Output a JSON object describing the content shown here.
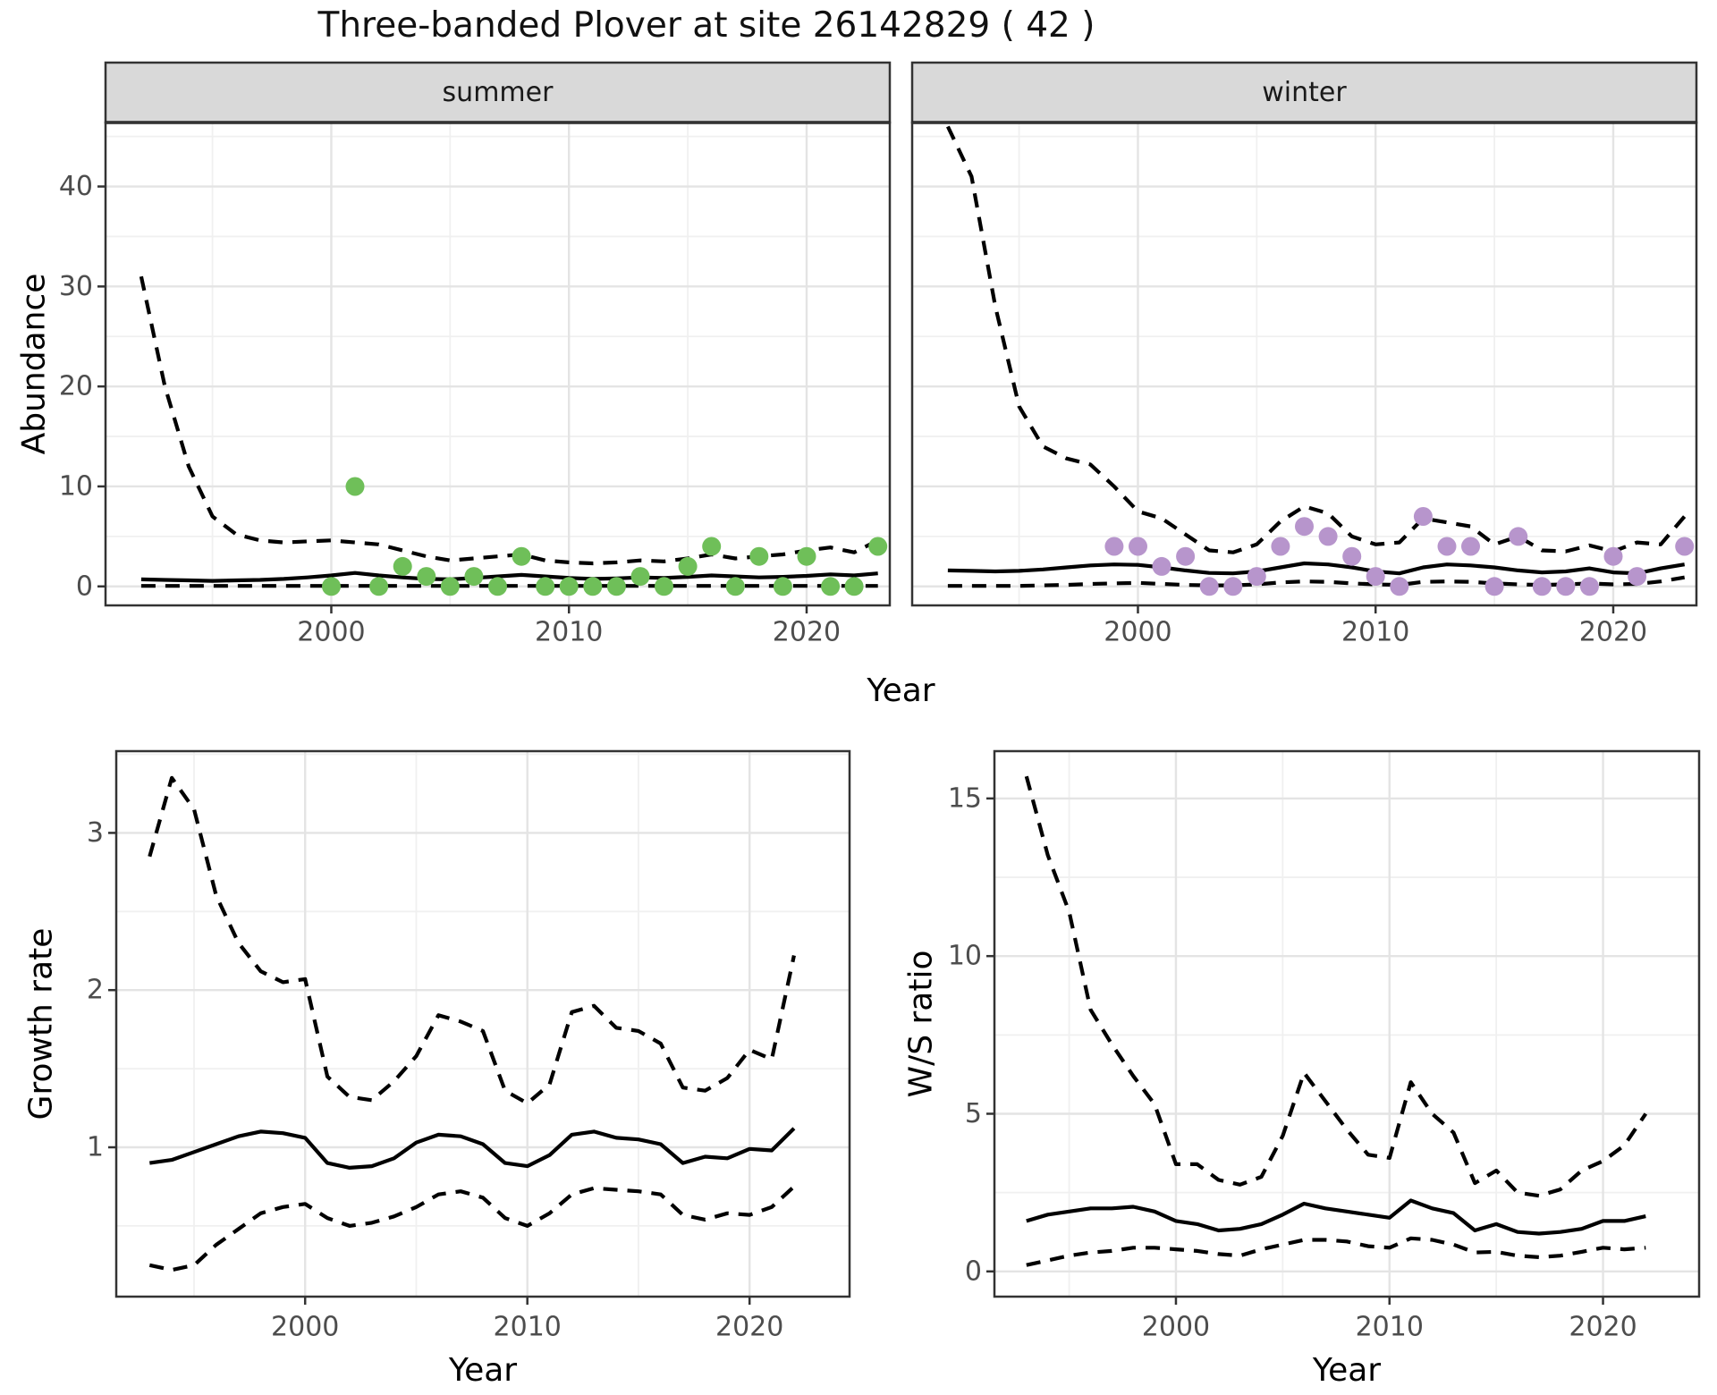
{
  "title": "Three-banded Plover at site 26142829 ( 42 )",
  "axis_labels": {
    "top_y": "Abundance",
    "top_x": "Year",
    "bottom_left_y": "Growth rate",
    "bottom_left_x": "Year",
    "bottom_right_y": "W/S ratio",
    "bottom_right_x": "Year"
  },
  "colors": {
    "summer_point": "#6FBF59",
    "winter_point": "#B795CC",
    "line": "#000000",
    "strip_bg": "#D9D9D9",
    "strip_border": "#333333",
    "panel_border": "#333333",
    "grid_major": "#E4E4E4",
    "grid_minor": "#F0F0F0",
    "tick_text": "#4D4D4D",
    "tick_mark": "#333333",
    "background": "#FFFFFF"
  },
  "chart_data": [
    {
      "id": "abundance-summer",
      "type": "line",
      "facet_label": "summer",
      "ylabel": "Abundance",
      "xlabel": "Year",
      "xlim": [
        1990.5,
        2023.5
      ],
      "ylim": [
        -1.9,
        46.4
      ],
      "xticks": [
        2000,
        2010,
        2020
      ],
      "xminor": [
        1995,
        2005,
        2015
      ],
      "yticks": [
        0,
        10,
        20,
        30,
        40
      ],
      "yminor": [
        5,
        15,
        25,
        35,
        45
      ],
      "series": [
        {
          "name": "upper-ci",
          "style": "dashed",
          "x": [
            1992,
            1993,
            1994,
            1995,
            1996,
            1997,
            1998,
            1999,
            2000,
            2001,
            2002,
            2003,
            2004,
            2005,
            2006,
            2007,
            2008,
            2009,
            2010,
            2011,
            2012,
            2013,
            2014,
            2015,
            2016,
            2017,
            2018,
            2019,
            2020,
            2021,
            2022,
            2023
          ],
          "y": [
            31,
            20,
            12,
            7,
            5.2,
            4.6,
            4.4,
            4.5,
            4.6,
            4.4,
            4.2,
            3.6,
            3.0,
            2.6,
            2.8,
            3.0,
            3.2,
            2.6,
            2.4,
            2.3,
            2.4,
            2.6,
            2.5,
            2.8,
            3.2,
            2.8,
            3.0,
            3.2,
            3.6,
            3.9,
            3.4,
            4.6
          ]
        },
        {
          "name": "mean",
          "style": "solid",
          "x": [
            1992,
            1993,
            1994,
            1995,
            1996,
            1997,
            1998,
            1999,
            2000,
            2001,
            2002,
            2003,
            2004,
            2005,
            2006,
            2007,
            2008,
            2009,
            2010,
            2011,
            2012,
            2013,
            2014,
            2015,
            2016,
            2017,
            2018,
            2019,
            2020,
            2021,
            2022,
            2023
          ],
          "y": [
            0.7,
            0.65,
            0.6,
            0.55,
            0.6,
            0.65,
            0.75,
            0.9,
            1.1,
            1.35,
            1.1,
            0.9,
            0.75,
            0.7,
            0.85,
            1.0,
            1.15,
            1.0,
            0.85,
            0.75,
            0.8,
            0.9,
            0.85,
            0.95,
            1.1,
            1.0,
            0.9,
            0.95,
            1.05,
            1.2,
            1.1,
            1.3
          ]
        },
        {
          "name": "lower-ci",
          "style": "dashed",
          "x": [
            1992,
            1993,
            1994,
            1995,
            1996,
            1997,
            1998,
            1999,
            2000,
            2001,
            2002,
            2003,
            2004,
            2005,
            2006,
            2007,
            2008,
            2009,
            2010,
            2011,
            2012,
            2013,
            2014,
            2015,
            2016,
            2017,
            2018,
            2019,
            2020,
            2021,
            2022,
            2023
          ],
          "y": [
            0.05,
            0.05,
            0.05,
            0.05,
            0.05,
            0.05,
            0.05,
            0.05,
            0.05,
            0.05,
            0.05,
            0.05,
            0.05,
            0.05,
            0.05,
            0.05,
            0.05,
            0.05,
            0.05,
            0.05,
            0.05,
            0.05,
            0.05,
            0.05,
            0.05,
            0.05,
            0.05,
            0.05,
            0.05,
            0.05,
            0.05,
            0.05
          ]
        }
      ],
      "points": {
        "name": "summer-counts",
        "color_key": "summer_point",
        "x": [
          2000,
          2001,
          2002,
          2003,
          2004,
          2005,
          2006,
          2007,
          2008,
          2009,
          2010,
          2011,
          2012,
          2013,
          2014,
          2015,
          2016,
          2017,
          2018,
          2019,
          2020,
          2021,
          2022,
          2023
        ],
        "y": [
          0,
          10,
          0,
          2,
          1,
          0,
          1,
          0,
          3,
          0,
          0,
          0,
          0,
          1,
          0,
          2,
          4,
          0,
          3,
          0,
          3,
          0,
          0,
          4
        ]
      }
    },
    {
      "id": "abundance-winter",
      "type": "line",
      "facet_label": "winter",
      "ylabel": "Abundance",
      "xlabel": "Year",
      "xlim": [
        1990.5,
        2023.5
      ],
      "ylim": [
        -1.9,
        46.4
      ],
      "xticks": [
        2000,
        2010,
        2020
      ],
      "xminor": [
        1995,
        2005,
        2015
      ],
      "yticks": [
        0,
        10,
        20,
        30,
        40
      ],
      "yminor": [
        5,
        15,
        25,
        35,
        45
      ],
      "series": [
        {
          "name": "upper-ci",
          "style": "dashed",
          "x": [
            1992,
            1993,
            1994,
            1995,
            1996,
            1997,
            1998,
            1999,
            2000,
            2001,
            2002,
            2003,
            2004,
            2005,
            2006,
            2007,
            2008,
            2009,
            2010,
            2011,
            2012,
            2013,
            2014,
            2015,
            2016,
            2017,
            2018,
            2019,
            2020,
            2021,
            2022,
            2023
          ],
          "y": [
            46,
            41,
            28,
            18,
            14,
            12.8,
            12.2,
            10,
            7.5,
            6.8,
            5.2,
            3.6,
            3.4,
            4.2,
            6.5,
            8.0,
            7.3,
            5.0,
            4.2,
            4.4,
            6.8,
            6.4,
            6.0,
            4.2,
            5.0,
            3.6,
            3.5,
            4.1,
            3.5,
            4.4,
            4.2,
            7.0
          ]
        },
        {
          "name": "mean",
          "style": "solid",
          "x": [
            1992,
            1993,
            1994,
            1995,
            1996,
            1997,
            1998,
            1999,
            2000,
            2001,
            2002,
            2003,
            2004,
            2005,
            2006,
            2007,
            2008,
            2009,
            2010,
            2011,
            2012,
            2013,
            2014,
            2015,
            2016,
            2017,
            2018,
            2019,
            2020,
            2021,
            2022,
            2023
          ],
          "y": [
            1.6,
            1.55,
            1.5,
            1.55,
            1.7,
            1.9,
            2.1,
            2.2,
            2.15,
            1.9,
            1.6,
            1.35,
            1.3,
            1.5,
            1.9,
            2.3,
            2.2,
            1.9,
            1.5,
            1.3,
            1.9,
            2.2,
            2.1,
            1.9,
            1.6,
            1.4,
            1.5,
            1.8,
            1.4,
            1.3,
            1.8,
            2.2
          ]
        },
        {
          "name": "lower-ci",
          "style": "dashed",
          "x": [
            1992,
            1993,
            1994,
            1995,
            1996,
            1997,
            1998,
            1999,
            2000,
            2001,
            2002,
            2003,
            2004,
            2005,
            2006,
            2007,
            2008,
            2009,
            2010,
            2011,
            2012,
            2013,
            2014,
            2015,
            2016,
            2017,
            2018,
            2019,
            2020,
            2021,
            2022,
            2023
          ],
          "y": [
            0.05,
            0.05,
            0.05,
            0.05,
            0.1,
            0.15,
            0.25,
            0.3,
            0.35,
            0.25,
            0.15,
            0.1,
            0.1,
            0.2,
            0.4,
            0.5,
            0.45,
            0.3,
            0.2,
            0.15,
            0.45,
            0.5,
            0.45,
            0.3,
            0.2,
            0.15,
            0.2,
            0.3,
            0.2,
            0.25,
            0.5,
            0.9
          ]
        }
      ],
      "points": {
        "name": "winter-counts",
        "color_key": "winter_point",
        "x": [
          1999,
          2000,
          2001,
          2002,
          2003,
          2004,
          2005,
          2006,
          2007,
          2008,
          2009,
          2010,
          2011,
          2012,
          2013,
          2014,
          2015,
          2016,
          2017,
          2018,
          2019,
          2020,
          2021,
          2023
        ],
        "y": [
          4,
          4,
          2,
          3,
          0,
          0,
          1,
          4,
          6,
          5,
          3,
          1,
          0,
          7,
          4,
          4,
          0,
          5,
          0,
          0,
          0,
          3,
          1,
          4
        ]
      }
    },
    {
      "id": "growth-rate",
      "type": "line",
      "facet_label": "",
      "ylabel": "Growth rate",
      "xlabel": "Year",
      "xlim": [
        1991.5,
        2024.5
      ],
      "ylim": [
        0.05,
        3.52
      ],
      "xticks": [
        2000,
        2010,
        2020
      ],
      "xminor": [
        1995,
        2005,
        2015
      ],
      "yticks": [
        1,
        2,
        3
      ],
      "yminor": [
        0.5,
        1.5,
        2.5,
        3.5
      ],
      "series": [
        {
          "name": "upper-ci",
          "style": "dashed",
          "x": [
            1993,
            1994,
            1995,
            1996,
            1997,
            1998,
            1999,
            2000,
            2001,
            2002,
            2003,
            2004,
            2005,
            2006,
            2007,
            2008,
            2009,
            2010,
            2011,
            2012,
            2013,
            2014,
            2015,
            2016,
            2017,
            2018,
            2019,
            2020,
            2021,
            2022
          ],
          "y": [
            2.85,
            3.35,
            3.15,
            2.6,
            2.3,
            2.12,
            2.05,
            2.07,
            1.45,
            1.32,
            1.3,
            1.42,
            1.58,
            1.84,
            1.8,
            1.74,
            1.36,
            1.28,
            1.4,
            1.86,
            1.9,
            1.76,
            1.74,
            1.66,
            1.38,
            1.36,
            1.44,
            1.62,
            1.56,
            2.22
          ]
        },
        {
          "name": "mean",
          "style": "solid",
          "x": [
            1993,
            1994,
            1995,
            1996,
            1997,
            1998,
            1999,
            2000,
            2001,
            2002,
            2003,
            2004,
            2005,
            2006,
            2007,
            2008,
            2009,
            2010,
            2011,
            2012,
            2013,
            2014,
            2015,
            2016,
            2017,
            2018,
            2019,
            2020,
            2021,
            2022
          ],
          "y": [
            0.9,
            0.92,
            0.97,
            1.02,
            1.07,
            1.1,
            1.09,
            1.06,
            0.9,
            0.87,
            0.88,
            0.93,
            1.03,
            1.08,
            1.07,
            1.02,
            0.9,
            0.88,
            0.95,
            1.08,
            1.1,
            1.06,
            1.05,
            1.02,
            0.9,
            0.94,
            0.93,
            0.99,
            0.98,
            1.12
          ]
        },
        {
          "name": "lower-ci",
          "style": "dashed",
          "x": [
            1993,
            1994,
            1995,
            1996,
            1997,
            1998,
            1999,
            2000,
            2001,
            2002,
            2003,
            2004,
            2005,
            2006,
            2007,
            2008,
            2009,
            2010,
            2011,
            2012,
            2013,
            2014,
            2015,
            2016,
            2017,
            2018,
            2019,
            2020,
            2021,
            2022
          ],
          "y": [
            0.25,
            0.22,
            0.25,
            0.38,
            0.48,
            0.58,
            0.62,
            0.64,
            0.55,
            0.5,
            0.52,
            0.56,
            0.62,
            0.7,
            0.72,
            0.68,
            0.55,
            0.5,
            0.58,
            0.7,
            0.74,
            0.73,
            0.72,
            0.7,
            0.57,
            0.54,
            0.58,
            0.57,
            0.62,
            0.75
          ]
        }
      ]
    },
    {
      "id": "ws-ratio",
      "type": "line",
      "facet_label": "",
      "ylabel": "W/S ratio",
      "xlabel": "Year",
      "xlim": [
        1991.5,
        2024.5
      ],
      "ylim": [
        -0.8,
        16.5
      ],
      "xticks": [
        2000,
        2010,
        2020
      ],
      "xminor": [
        1995,
        2005,
        2015
      ],
      "yticks": [
        0,
        5,
        10,
        15
      ],
      "yminor": [
        2.5,
        7.5,
        12.5
      ],
      "series": [
        {
          "name": "upper-ci",
          "style": "dashed",
          "x": [
            1993,
            1994,
            1995,
            1996,
            1997,
            1998,
            1999,
            2000,
            2001,
            2002,
            2003,
            2004,
            2005,
            2006,
            2007,
            2008,
            2009,
            2010,
            2011,
            2012,
            2013,
            2014,
            2015,
            2016,
            2017,
            2018,
            2019,
            2020,
            2021,
            2022
          ],
          "y": [
            15.7,
            13.2,
            11.4,
            8.3,
            7.2,
            6.2,
            5.3,
            3.4,
            3.4,
            2.9,
            2.75,
            3.0,
            4.3,
            6.3,
            5.4,
            4.5,
            3.7,
            3.6,
            6.0,
            5.0,
            4.4,
            2.8,
            3.2,
            2.5,
            2.4,
            2.6,
            3.2,
            3.5,
            4.0,
            5.0
          ]
        },
        {
          "name": "mean",
          "style": "solid",
          "x": [
            1993,
            1994,
            1995,
            1996,
            1997,
            1998,
            1999,
            2000,
            2001,
            2002,
            2003,
            2004,
            2005,
            2006,
            2007,
            2008,
            2009,
            2010,
            2011,
            2012,
            2013,
            2014,
            2015,
            2016,
            2017,
            2018,
            2019,
            2020,
            2021,
            2022
          ],
          "y": [
            1.6,
            1.8,
            1.9,
            2.0,
            2.0,
            2.05,
            1.9,
            1.6,
            1.5,
            1.3,
            1.35,
            1.5,
            1.8,
            2.15,
            2.0,
            1.9,
            1.8,
            1.7,
            2.25,
            2.0,
            1.85,
            1.3,
            1.5,
            1.25,
            1.2,
            1.25,
            1.35,
            1.6,
            1.6,
            1.75
          ]
        },
        {
          "name": "lower-ci",
          "style": "dashed",
          "x": [
            1993,
            1994,
            1995,
            1996,
            1997,
            1998,
            1999,
            2000,
            2001,
            2002,
            2003,
            2004,
            2005,
            2006,
            2007,
            2008,
            2009,
            2010,
            2011,
            2012,
            2013,
            2014,
            2015,
            2016,
            2017,
            2018,
            2019,
            2020,
            2021,
            2022
          ],
          "y": [
            0.2,
            0.35,
            0.5,
            0.6,
            0.65,
            0.75,
            0.75,
            0.7,
            0.65,
            0.55,
            0.5,
            0.7,
            0.85,
            1.0,
            1.0,
            0.95,
            0.8,
            0.75,
            1.05,
            1.0,
            0.85,
            0.6,
            0.62,
            0.5,
            0.45,
            0.5,
            0.62,
            0.75,
            0.7,
            0.75
          ]
        }
      ]
    }
  ]
}
